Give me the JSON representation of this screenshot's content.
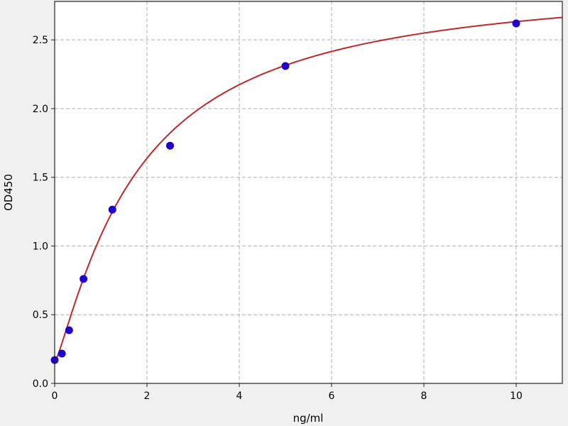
{
  "chart_data": {
    "type": "scatter",
    "title": "",
    "xlabel": "ng/ml",
    "ylabel": "OD450",
    "xlim": [
      0,
      11
    ],
    "ylim": [
      0,
      2.78
    ],
    "xticks": [
      0,
      2,
      4,
      6,
      8,
      10
    ],
    "xtick_labels": [
      "0",
      "2",
      "4",
      "6",
      "8",
      "10"
    ],
    "yticks": [
      0.0,
      0.5,
      1.0,
      1.5,
      2.0,
      2.5
    ],
    "ytick_labels": [
      "0.0",
      "0.5",
      "1.0",
      "1.5",
      "2.0",
      "2.5"
    ],
    "grid": true,
    "points": {
      "x": [
        0,
        0.156,
        0.3125,
        0.625,
        1.25,
        2.5,
        5,
        10
      ],
      "y": [
        0.17,
        0.217,
        0.387,
        0.76,
        1.265,
        1.73,
        2.31,
        2.62
      ],
      "color": "#2200cc"
    },
    "fit_curve": {
      "type": "four-parameter logistic",
      "color": "#c0282a"
    }
  }
}
